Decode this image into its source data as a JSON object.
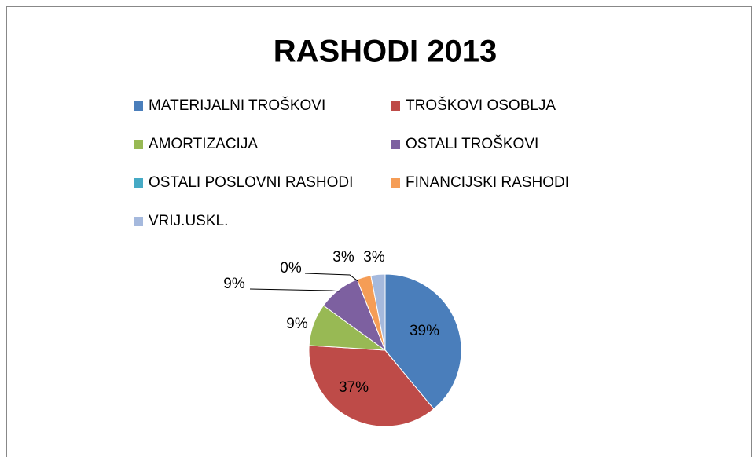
{
  "chart_data": {
    "type": "pie",
    "title": "RASHODI 2013",
    "categories": [
      "MATERIJALNI TROŠKOVI",
      "TROŠKOVI OSOBLJA",
      "AMORTIZACIJA",
      "OSTALI TROŠKOVI",
      "OSTALI POSLOVNI RASHODI",
      "FINANCIJSKI RASHODI",
      "VRIJ.USKL."
    ],
    "values": [
      39,
      37,
      9,
      9,
      0,
      3,
      3
    ],
    "value_labels": [
      "39%",
      "37%",
      "9%",
      "9%",
      "0%",
      "3%",
      "3%"
    ],
    "colors": [
      "#4a7ebb",
      "#be4b48",
      "#98b954",
      "#7d60a0",
      "#46aac5",
      "#f59d56",
      "#a5b9dd"
    ],
    "legend": "top"
  }
}
